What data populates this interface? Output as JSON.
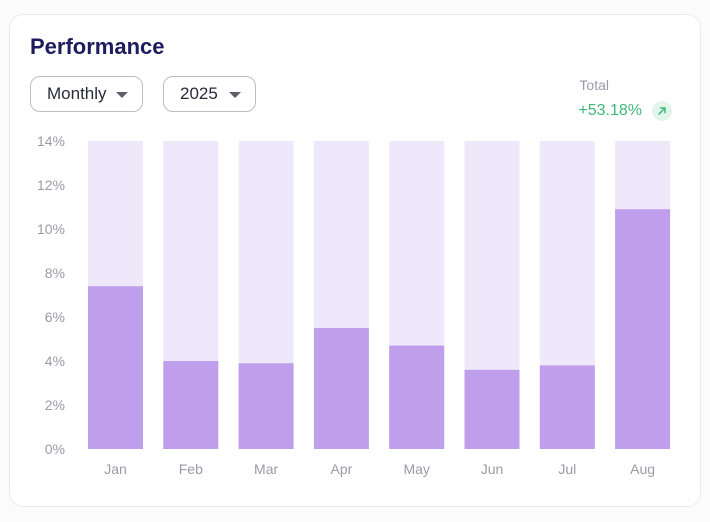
{
  "header": {
    "title": "Performance",
    "period_select": "Monthly",
    "year_select": "2025"
  },
  "total": {
    "label": "Total",
    "value": "+53.18%",
    "trend_icon": "arrow-up-right-icon"
  },
  "colors": {
    "bar": "#bf9feb",
    "track": "#efe8fa",
    "positive": "#3fb878",
    "title": "#1c1c5e",
    "axis_text": "#9b9aa8"
  },
  "chart_data": {
    "type": "bar",
    "title": "Performance",
    "categories": [
      "Jan",
      "Feb",
      "Mar",
      "Apr",
      "May",
      "Jun",
      "Jul",
      "Aug"
    ],
    "values": [
      7.4,
      4.0,
      3.9,
      5.5,
      4.7,
      3.6,
      3.8,
      10.9
    ],
    "unit": "%",
    "ylim": [
      0,
      14
    ],
    "yticks": [
      "0%",
      "2%",
      "4%",
      "6%",
      "8%",
      "10%",
      "12%",
      "14%"
    ],
    "grid": false,
    "legend": "none"
  }
}
